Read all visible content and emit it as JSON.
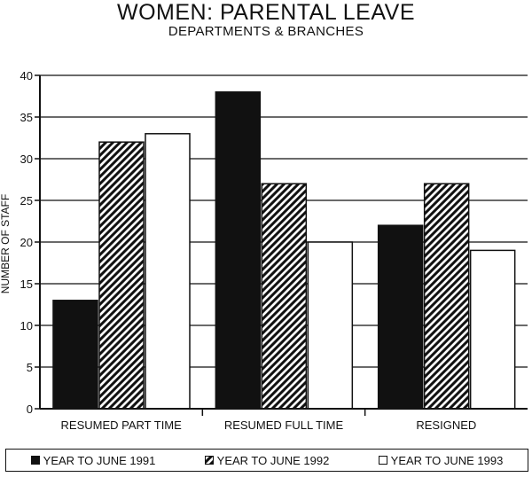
{
  "chart_data": {
    "type": "bar",
    "title": "WOMEN: PARENTAL LEAVE",
    "subtitle": "DEPARTMENTS & BRANCHES",
    "ylabel": "NUMBER OF STAFF",
    "xlabel": "",
    "ylim": [
      0,
      40
    ],
    "yticks": [
      0,
      5,
      10,
      15,
      20,
      25,
      30,
      35,
      40
    ],
    "grid": true,
    "legend_position": "bottom",
    "categories": [
      "RESUMED PART TIME",
      "RESUMED FULL TIME",
      "RESIGNED"
    ],
    "series": [
      {
        "name": "YEAR TO JUNE 1991",
        "values": [
          13,
          38,
          22
        ],
        "fill": "solid",
        "color": "#111111"
      },
      {
        "name": "YEAR TO JUNE 1992",
        "values": [
          32,
          27,
          27
        ],
        "fill": "hatched",
        "color": "#111111"
      },
      {
        "name": "YEAR TO JUNE 1993",
        "values": [
          33,
          20,
          19
        ],
        "fill": "white",
        "color": "#ffffff"
      }
    ]
  }
}
